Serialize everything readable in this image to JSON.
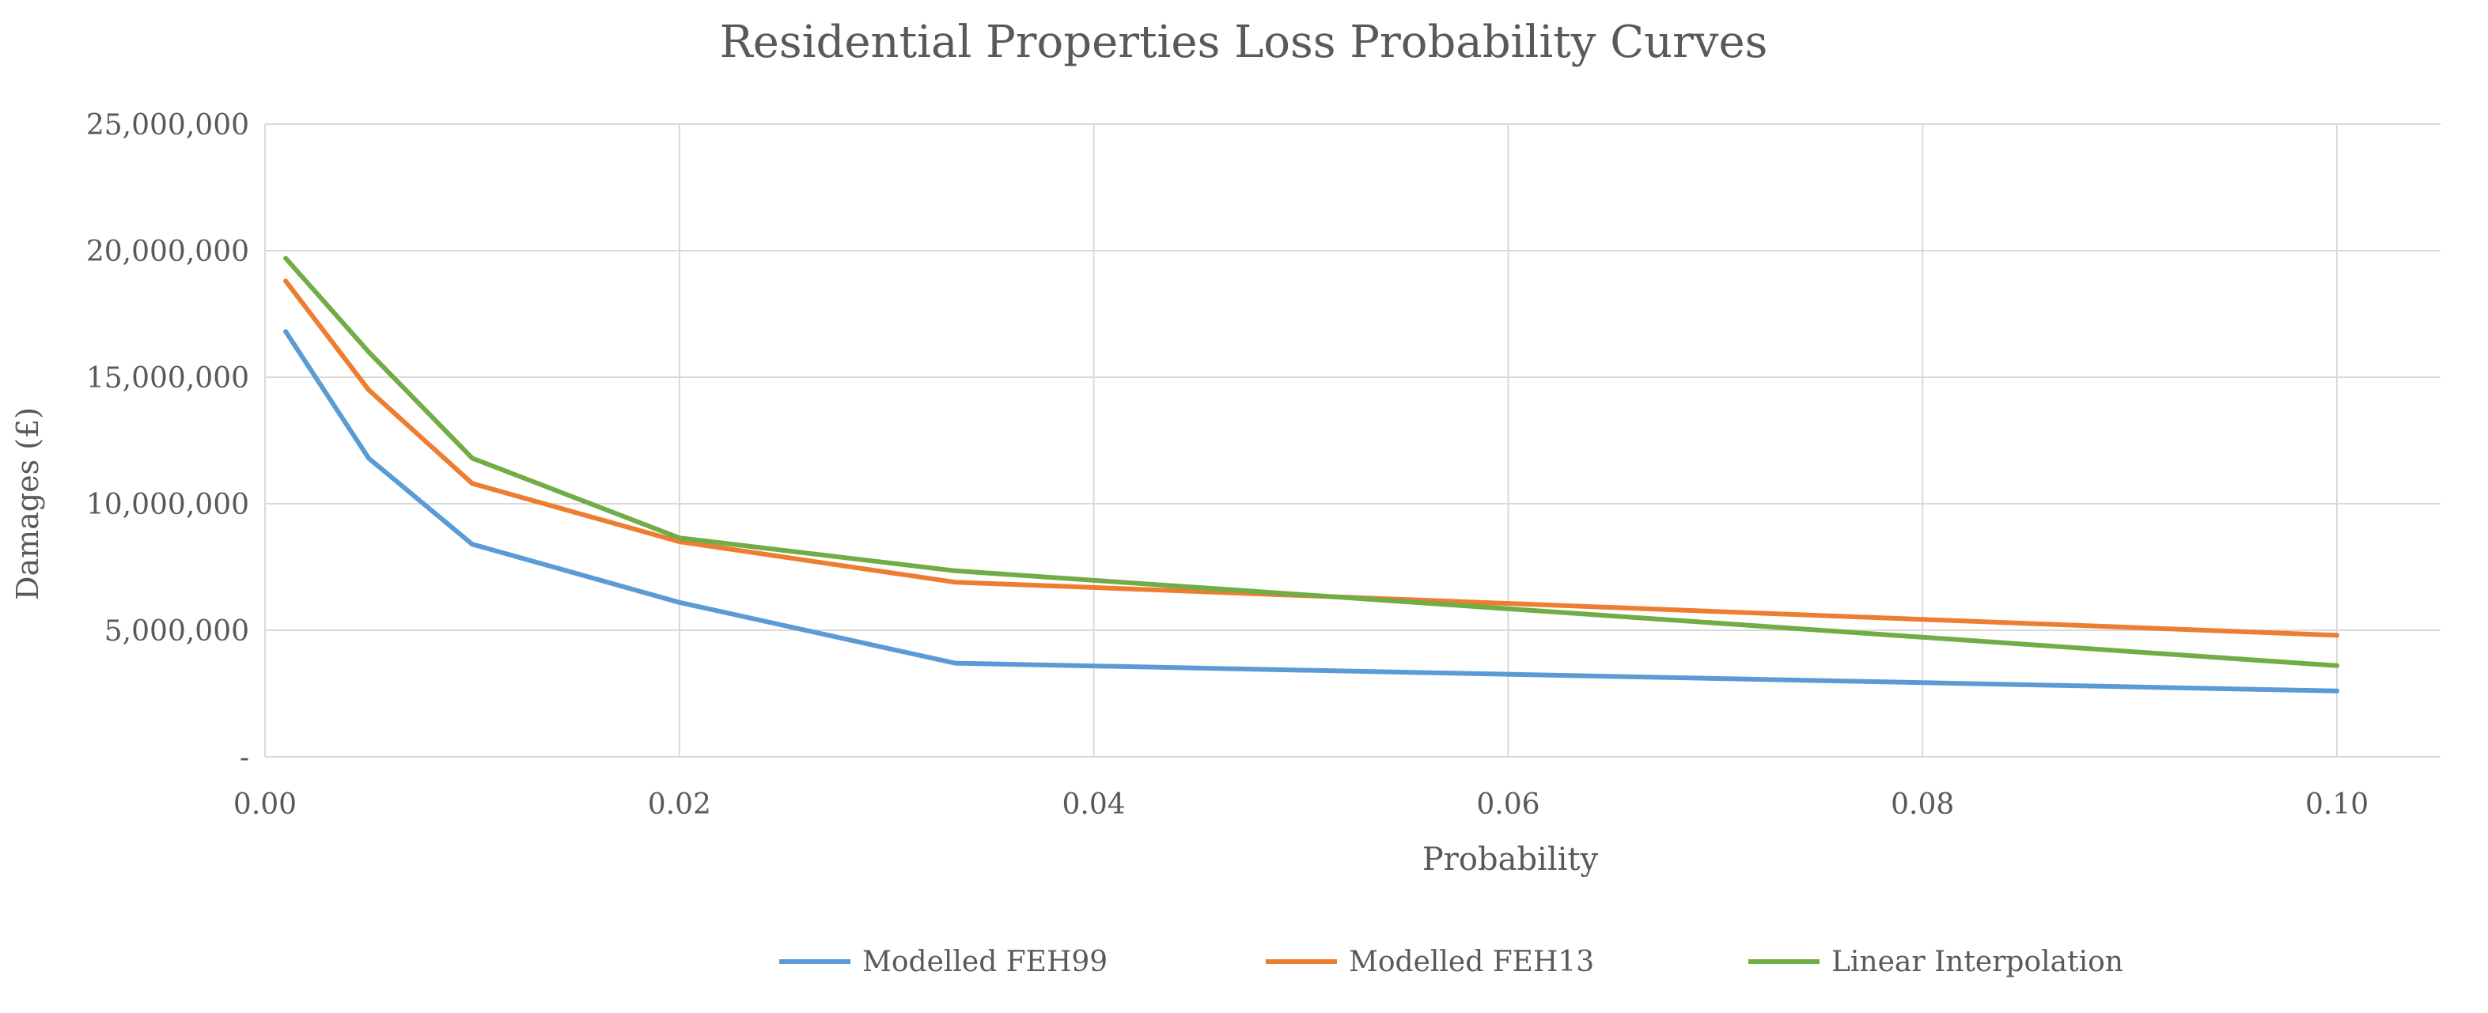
{
  "chart_data": {
    "type": "line",
    "title": "Residential Properties Loss Probability Curves",
    "xlabel": "Probability",
    "ylabel": "Damages (£)",
    "xlim": [
      0,
      0.105
    ],
    "ylim": [
      0,
      25000000
    ],
    "x_ticks": [
      0.0,
      0.02,
      0.04,
      0.06,
      0.08,
      0.1
    ],
    "x_tick_labels": [
      "0.00",
      "0.02",
      "0.04",
      "0.06",
      "0.08",
      "0.10"
    ],
    "y_ticks": [
      0,
      5000000,
      10000000,
      15000000,
      20000000,
      25000000
    ],
    "y_tick_labels": [
      "-",
      "5,000,000",
      "10,000,000",
      "15,000,000",
      "20,000,000",
      "25,000,000"
    ],
    "grid": true,
    "legend_position": "bottom",
    "series": [
      {
        "name": "Modelled FEH99",
        "color": "#5B9BD5",
        "x": [
          0.001,
          0.005,
          0.01,
          0.02,
          0.0333,
          0.1
        ],
        "y": [
          16800000,
          11800000,
          8400000,
          6100000,
          3700000,
          2600000
        ]
      },
      {
        "name": "Modelled FEH13",
        "color": "#ED7D31",
        "x": [
          0.001,
          0.005,
          0.01,
          0.02,
          0.0333,
          0.1
        ],
        "y": [
          18800000,
          14500000,
          10800000,
          8500000,
          6900000,
          4800000
        ]
      },
      {
        "name": "Linear Interpolation",
        "color": "#70AD47",
        "x": [
          0.001,
          0.005,
          0.01,
          0.02,
          0.0333,
          0.1
        ],
        "y": [
          19700000,
          16000000,
          11800000,
          8650000,
          7350000,
          3600000
        ]
      }
    ]
  }
}
